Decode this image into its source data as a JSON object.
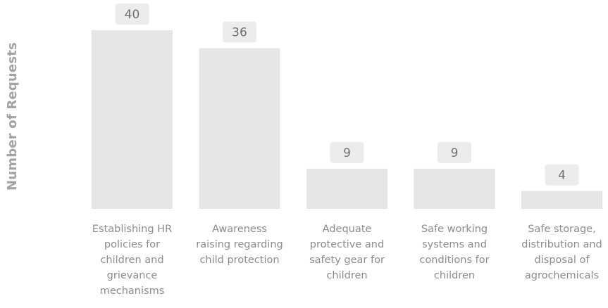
{
  "chart_data": {
    "type": "bar",
    "ylabel": "Number of Requests",
    "xlabel": "",
    "categories": [
      "Establishing HR policies for children and grievance mechanisms",
      "Awareness raising regarding child protection",
      "Adequate protective and safety gear for children",
      "Safe working systems and conditions for children",
      "Safe storage, distribution and disposal of agrochemicals"
    ],
    "category_lines": [
      [
        "Establishing HR",
        "policies for",
        "children and",
        "grievance",
        "mechanisms"
      ],
      [
        "Awareness",
        "raising regarding",
        "child protection"
      ],
      [
        "Adequate",
        "protective and",
        "safety gear for",
        "children"
      ],
      [
        "Safe working",
        "systems and",
        "conditions for",
        "children"
      ],
      [
        "Safe storage,",
        "distribution and",
        "disposal of",
        "agrochemicals"
      ]
    ],
    "values": [
      40,
      36,
      9,
      9,
      4
    ],
    "data_labels": [
      "40",
      "36",
      "9",
      "9",
      "4"
    ],
    "ylim": [
      0,
      40
    ],
    "grid": false,
    "legend": "none",
    "colors": {
      "bar": "#e6e6e6",
      "label_box": "#ececec",
      "label_text": "#707070",
      "category_text": "#8c8c8c",
      "axis_title": "#a3a3a3"
    }
  }
}
